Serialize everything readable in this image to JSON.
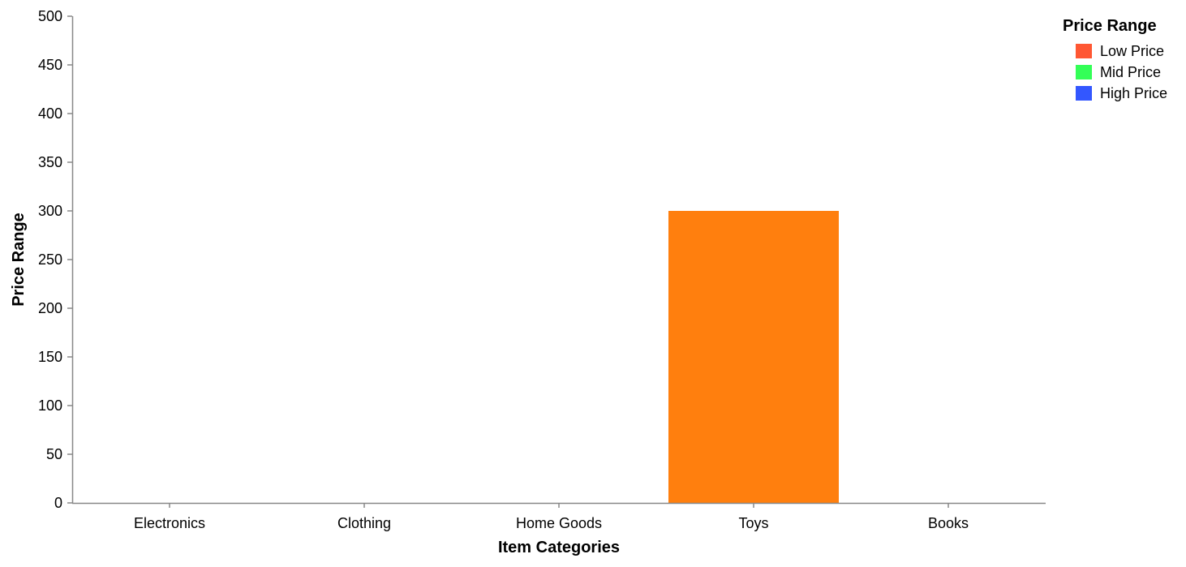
{
  "chart_data": {
    "type": "bar",
    "categories": [
      "Electronics",
      "Clothing",
      "Home Goods",
      "Toys",
      "Books"
    ],
    "series": [
      {
        "values": [
          0,
          0,
          0,
          300,
          0
        ],
        "color": "#ff7f0e"
      }
    ],
    "xlabel": "Item Categories",
    "ylabel": "Price Range",
    "ylim": [
      0,
      500
    ],
    "yticks": [
      0,
      50,
      100,
      150,
      200,
      250,
      300,
      350,
      400,
      450,
      500
    ],
    "grid": false,
    "legend": {
      "title": "Price Range",
      "placement": "top-right",
      "items": [
        {
          "label": "Low Price",
          "color": "#ff5733"
        },
        {
          "label": "Mid Price",
          "color": "#33ff57"
        },
        {
          "label": "High Price",
          "color": "#3357ff"
        }
      ]
    },
    "axis_color": "#888888"
  }
}
